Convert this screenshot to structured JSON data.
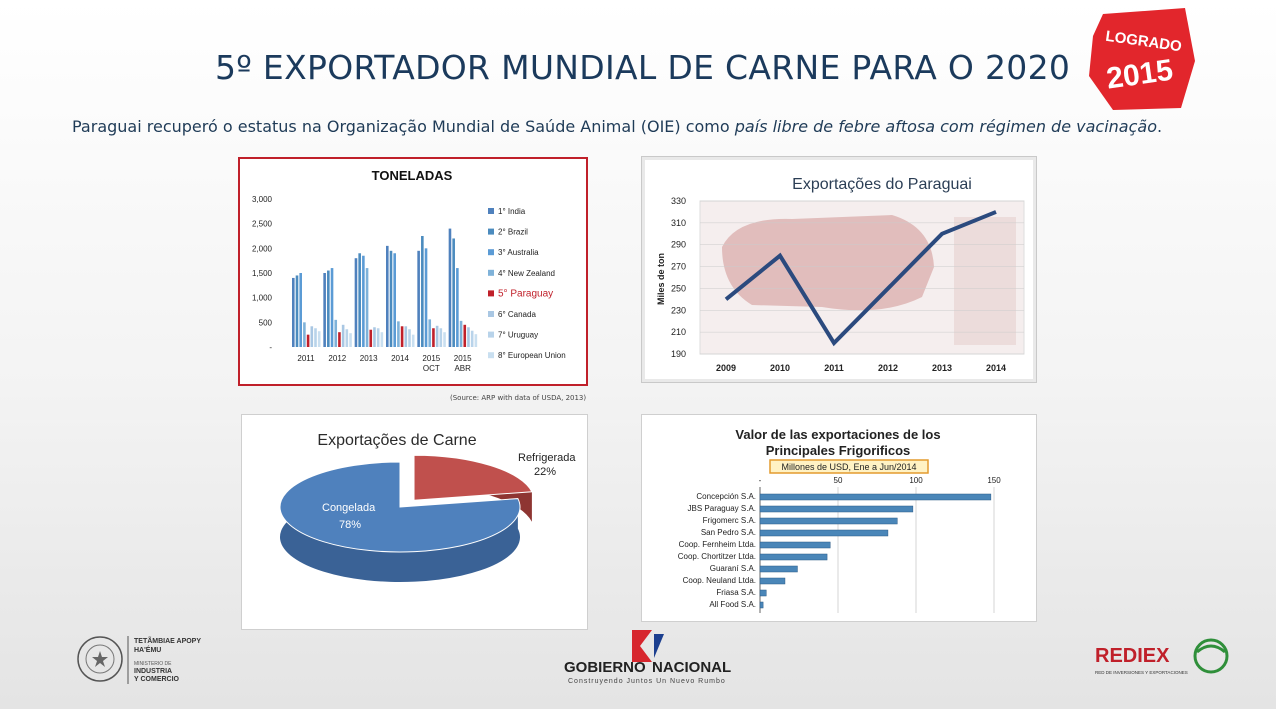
{
  "header": {
    "title": "5º EXPORTADOR MUNDIAL DE CARNE PARA O 2020",
    "badge_top": "LOGRADO",
    "badge_year": "2015",
    "subtitle_plain": "Paraguai recuperó o estatus na Organização Mundial de Saúde Animal (OIE) como ",
    "subtitle_italic": "país libre de febre aftosa com régimen de vacinação",
    "subtitle_end": "."
  },
  "source_note": "(Source: ARP with data of USDA, 2013)",
  "colors": {
    "red": "#c0202a",
    "navy": "#2b4a7e",
    "badge": "#e2262c",
    "bar_fill": "#4a86b8"
  },
  "chart_data": [
    {
      "type": "bar",
      "title": "TONELADAS",
      "categories": [
        "2011",
        "2012",
        "2013",
        "2014",
        "2015 OCT",
        "2015 ABR"
      ],
      "ylim": [
        0,
        3000
      ],
      "yticks": [
        "3,000",
        "2,500",
        "2,000",
        "1,500",
        "1,000",
        "500",
        "-"
      ],
      "series": [
        {
          "name": "1° India",
          "color": "#4f81bd",
          "values": [
            1400,
            1500,
            1800,
            2050,
            1950,
            2400
          ]
        },
        {
          "name": "2° Brazil",
          "color": "#4b8bbe",
          "values": [
            1450,
            1550,
            1900,
            1950,
            2250,
            2200
          ]
        },
        {
          "name": "3° Australia",
          "color": "#5b9bd5",
          "values": [
            1500,
            1600,
            1850,
            1900,
            2000,
            1600
          ]
        },
        {
          "name": "4° New Zealand",
          "color": "#7fb2d9",
          "values": [
            500,
            550,
            1600,
            520,
            560,
            530
          ]
        },
        {
          "name": "5° Paraguay",
          "color": "#c0202a",
          "values": [
            250,
            300,
            350,
            420,
            380,
            450
          ]
        },
        {
          "name": "6° Canada",
          "color": "#a9c7e3",
          "values": [
            420,
            450,
            400,
            420,
            430,
            400
          ]
        },
        {
          "name": "7° Uruguay",
          "color": "#b8d3ea",
          "values": [
            380,
            360,
            380,
            360,
            380,
            330
          ]
        },
        {
          "name": "8° European Union",
          "color": "#c9dff0",
          "values": [
            320,
            280,
            300,
            250,
            300,
            260
          ]
        }
      ]
    },
    {
      "type": "line",
      "title": "Exportações do Paraguai",
      "ylabel": "Miles de ton",
      "x": [
        "2009",
        "2010",
        "2011",
        "2012",
        "2013",
        "2014"
      ],
      "yticks": [
        "330",
        "310",
        "290",
        "270",
        "250",
        "230",
        "210",
        "190"
      ],
      "ylim": [
        190,
        330
      ],
      "series": [
        {
          "name": "Exportações",
          "values": [
            240,
            280,
            200,
            250,
            300,
            320
          ]
        }
      ]
    },
    {
      "type": "pie",
      "title": "Exportações de Carne",
      "slices": [
        {
          "label": "Congelada",
          "value": 78,
          "display": "78%",
          "color": "#4f81bd"
        },
        {
          "label": "Refrigerada",
          "value": 22,
          "display": "22%",
          "color": "#c0504d"
        }
      ]
    },
    {
      "type": "bar",
      "orientation": "horizontal",
      "title": "Valor de las exportaciones de los Principales Frigorificos",
      "subtitle": "Millones de USD, Ene a Jun/2014",
      "xticks": [
        "-",
        "50",
        "100",
        "150"
      ],
      "xlim": [
        0,
        150
      ],
      "categories": [
        "Concepción S.A.",
        "JBS Paraguay S.A.",
        "Frigomerc S.A.",
        "San Pedro S.A.",
        "Coop. Fernheim Ltda.",
        "Coop. Chortitzer Ltda.",
        "Guaraní S.A.",
        "Coop. Neuland Ltda.",
        "Friasa S.A.",
        "All Food S.A."
      ],
      "values": [
        148,
        98,
        88,
        82,
        45,
        43,
        24,
        16,
        4,
        2
      ]
    }
  ],
  "footer": {
    "left_line1": "TETÃMBIAE APOPY",
    "left_line2": "HA'ÉMU",
    "left_line3": "MINISTERIO DE",
    "left_line4": "INDUSTRIA",
    "left_line5": "Y COMERCIO",
    "mid_main1": "GOBIERNO",
    "mid_main2": "NACIONAL",
    "mid_tag": "Construyendo Juntos Un Nuevo Rumbo",
    "right_main": "REDIEX",
    "right_sub": "RED DE INVERSIONES Y EXPORTACIONES"
  }
}
